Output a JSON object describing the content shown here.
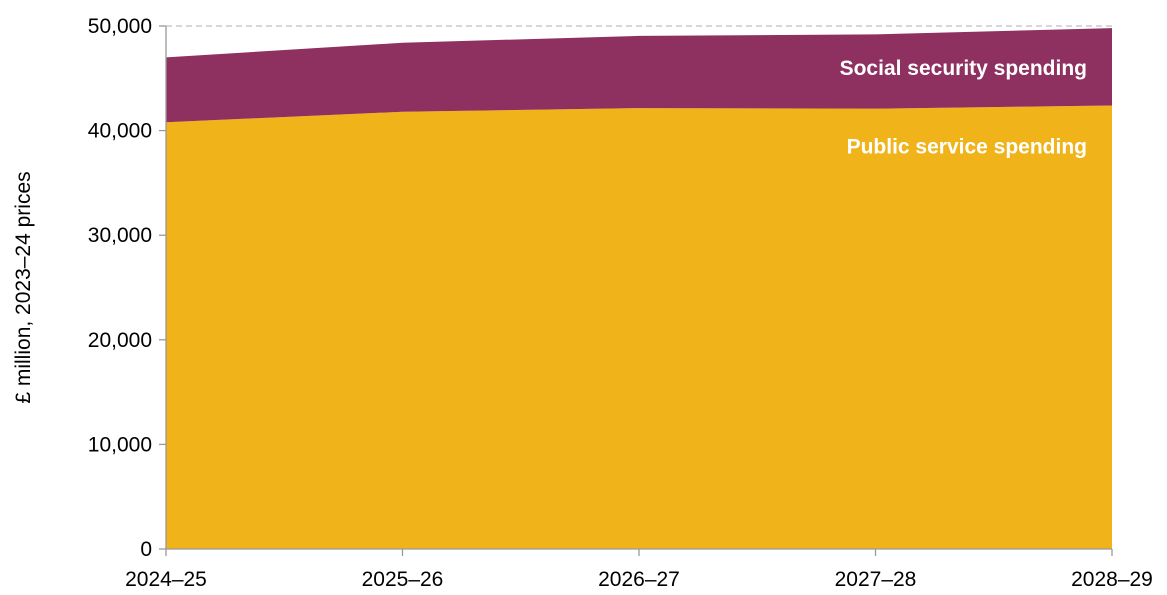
{
  "chart_data": {
    "type": "area",
    "stacked": true,
    "categories": [
      "2024–25",
      "2025–26",
      "2026–27",
      "2027–28",
      "2028–29"
    ],
    "series": [
      {
        "name": "Public service spending",
        "values": [
          40800,
          41800,
          42150,
          42100,
          42400
        ],
        "color": "#F0B41A"
      },
      {
        "name": "Social security spending",
        "values": [
          6200,
          6600,
          6900,
          7100,
          7400
        ],
        "color": "#8E3060"
      }
    ],
    "ylabel": "£ million, 2023–24 prices",
    "xlabel": "",
    "ylim": [
      0,
      50000
    ],
    "yticks": [
      0,
      10000,
      20000,
      30000,
      40000,
      50000
    ],
    "ytick_labels": [
      "0",
      "10,000",
      "20,000",
      "30,000",
      "40,000",
      "50,000"
    ],
    "gridline": {
      "value": 50000,
      "style": "dashed"
    },
    "title": "",
    "legend": "inline labels, right"
  }
}
